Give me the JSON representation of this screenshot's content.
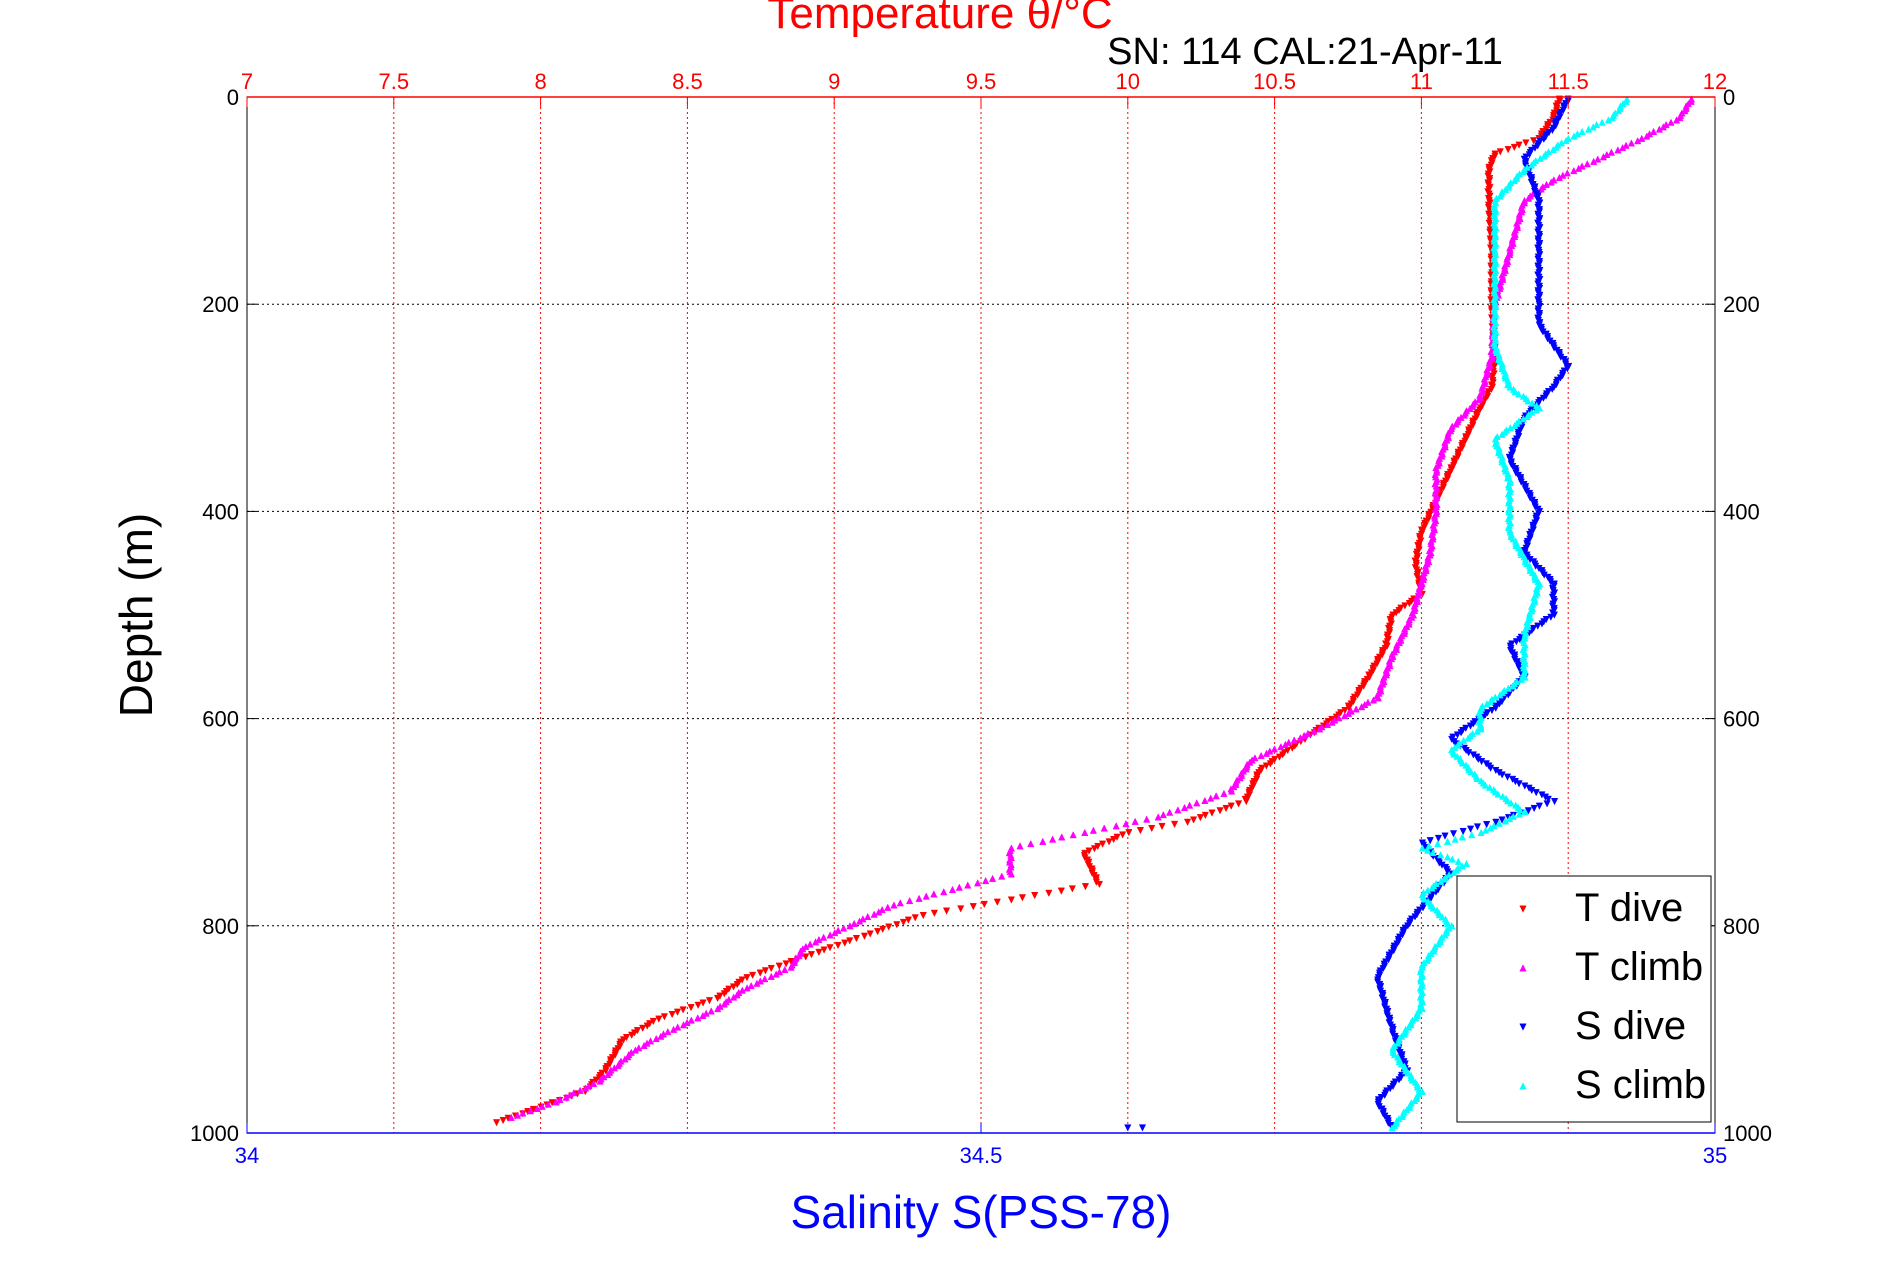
{
  "chart_data": {
    "type": "scatter",
    "title": "Temperature θ/°C",
    "subtitle": "SN: 114  CAL:21-Apr-11",
    "ylabel": "Depth (m)",
    "xlabel_bottom": "Salinity S(PSS-78)",
    "xlabel_top": "Temperature θ/°C",
    "y_reversed": true,
    "ylim": [
      0,
      1000
    ],
    "y_ticks": [
      "0",
      "200",
      "400",
      "600",
      "800",
      "1000"
    ],
    "y_tick_values": [
      0,
      200,
      400,
      600,
      800,
      1000
    ],
    "x_bottom": {
      "lim": [
        34,
        35
      ],
      "ticks": [
        "34",
        "34.5",
        "35"
      ],
      "tick_values": [
        34,
        34.5,
        35
      ],
      "color": "#0000ff"
    },
    "x_top": {
      "lim": [
        7,
        12
      ],
      "ticks": [
        "7",
        "7.5",
        "8",
        "8.5",
        "9",
        "9.5",
        "10",
        "10.5",
        "11",
        "11.5",
        "12"
      ],
      "tick_values": [
        7,
        7.5,
        8,
        8.5,
        9,
        9.5,
        10,
        10.5,
        11,
        11.5,
        12
      ],
      "color": "#ff0000"
    },
    "grid": true,
    "legend_position": "bottom-right",
    "series": [
      {
        "name": "T dive",
        "axis": "top",
        "color": "#ff0000",
        "marker": "triangle-down",
        "points": [
          [
            11.47,
            2
          ],
          [
            11.45,
            20
          ],
          [
            11.4,
            40
          ],
          [
            11.25,
            55
          ],
          [
            11.23,
            70
          ],
          [
            11.23,
            100
          ],
          [
            11.24,
            150
          ],
          [
            11.24,
            200
          ],
          [
            11.25,
            250
          ],
          [
            11.24,
            280
          ],
          [
            11.2,
            300
          ],
          [
            11.15,
            330
          ],
          [
            11.1,
            360
          ],
          [
            11.05,
            390
          ],
          [
            11.0,
            420
          ],
          [
            10.98,
            450
          ],
          [
            11.0,
            480
          ],
          [
            10.9,
            500
          ],
          [
            10.88,
            530
          ],
          [
            10.82,
            560
          ],
          [
            10.75,
            590
          ],
          [
            10.6,
            620
          ],
          [
            10.45,
            650
          ],
          [
            10.4,
            680
          ],
          [
            10.2,
            700
          ],
          [
            10.0,
            710
          ],
          [
            9.85,
            730
          ],
          [
            9.9,
            760
          ],
          [
            9.6,
            775
          ],
          [
            9.3,
            790
          ],
          [
            9.1,
            810
          ],
          [
            8.9,
            830
          ],
          [
            8.7,
            850
          ],
          [
            8.6,
            870
          ],
          [
            8.4,
            890
          ],
          [
            8.28,
            910
          ],
          [
            8.22,
            940
          ],
          [
            8.15,
            960
          ],
          [
            8.0,
            975
          ],
          [
            7.85,
            990
          ]
        ]
      },
      {
        "name": "T climb",
        "axis": "top",
        "color": "#ff00ff",
        "marker": "triangle-up",
        "points": [
          [
            11.92,
            2
          ],
          [
            11.88,
            20
          ],
          [
            11.75,
            40
          ],
          [
            11.6,
            60
          ],
          [
            11.45,
            80
          ],
          [
            11.35,
            100
          ],
          [
            11.3,
            150
          ],
          [
            11.25,
            200
          ],
          [
            11.24,
            250
          ],
          [
            11.2,
            290
          ],
          [
            11.1,
            320
          ],
          [
            11.05,
            360
          ],
          [
            11.05,
            400
          ],
          [
            11.03,
            440
          ],
          [
            11.0,
            470
          ],
          [
            10.97,
            500
          ],
          [
            10.9,
            540
          ],
          [
            10.85,
            580
          ],
          [
            10.65,
            610
          ],
          [
            10.42,
            640
          ],
          [
            10.35,
            670
          ],
          [
            10.1,
            695
          ],
          [
            9.85,
            710
          ],
          [
            9.6,
            725
          ],
          [
            9.6,
            750
          ],
          [
            9.2,
            780
          ],
          [
            9.05,
            800
          ],
          [
            8.9,
            820
          ],
          [
            8.85,
            840
          ],
          [
            8.7,
            860
          ],
          [
            8.6,
            880
          ],
          [
            8.45,
            900
          ],
          [
            8.32,
            920
          ],
          [
            8.2,
            950
          ],
          [
            8.05,
            970
          ],
          [
            7.9,
            985
          ]
        ]
      },
      {
        "name": "S dive",
        "axis": "bottom",
        "color": "#0000ff",
        "marker": "triangle-down",
        "points": [
          [
            34.9,
            2
          ],
          [
            34.89,
            30
          ],
          [
            34.87,
            60
          ],
          [
            34.88,
            100
          ],
          [
            34.88,
            150
          ],
          [
            34.88,
            200
          ],
          [
            34.88,
            220
          ],
          [
            34.9,
            260
          ],
          [
            34.89,
            280
          ],
          [
            34.87,
            310
          ],
          [
            34.86,
            350
          ],
          [
            34.88,
            400
          ],
          [
            34.87,
            440
          ],
          [
            34.89,
            470
          ],
          [
            34.89,
            500
          ],
          [
            34.86,
            530
          ],
          [
            34.87,
            560
          ],
          [
            34.85,
            590
          ],
          [
            34.82,
            620
          ],
          [
            34.85,
            650
          ],
          [
            34.89,
            680
          ],
          [
            34.85,
            700
          ],
          [
            34.8,
            720
          ],
          [
            34.82,
            750
          ],
          [
            34.79,
            800
          ],
          [
            34.77,
            850
          ],
          [
            34.78,
            900
          ],
          [
            34.79,
            940
          ],
          [
            34.77,
            970
          ],
          [
            34.78,
            995
          ]
        ]
      },
      {
        "name": "S climb",
        "axis": "bottom",
        "color": "#00ffff",
        "marker": "triangle-up",
        "points": [
          [
            34.94,
            2
          ],
          [
            34.93,
            20
          ],
          [
            34.9,
            40
          ],
          [
            34.87,
            70
          ],
          [
            34.85,
            100
          ],
          [
            34.85,
            150
          ],
          [
            34.85,
            200
          ],
          [
            34.85,
            240
          ],
          [
            34.86,
            280
          ],
          [
            34.88,
            300
          ],
          [
            34.85,
            330
          ],
          [
            34.86,
            370
          ],
          [
            34.86,
            420
          ],
          [
            34.88,
            470
          ],
          [
            34.87,
            520
          ],
          [
            34.87,
            560
          ],
          [
            34.84,
            590
          ],
          [
            34.84,
            610
          ],
          [
            34.82,
            630
          ],
          [
            34.84,
            660
          ],
          [
            34.87,
            690
          ],
          [
            34.84,
            710
          ],
          [
            34.8,
            725
          ],
          [
            34.83,
            740
          ],
          [
            34.8,
            770
          ],
          [
            34.82,
            800
          ],
          [
            34.8,
            840
          ],
          [
            34.8,
            880
          ],
          [
            34.78,
            920
          ],
          [
            34.8,
            960
          ],
          [
            34.78,
            995
          ]
        ]
      }
    ],
    "stray_points": [
      {
        "axis": "bottom",
        "color": "#0000ff",
        "points": [
          [
            34.6,
            995
          ],
          [
            34.61,
            995
          ]
        ]
      }
    ]
  }
}
